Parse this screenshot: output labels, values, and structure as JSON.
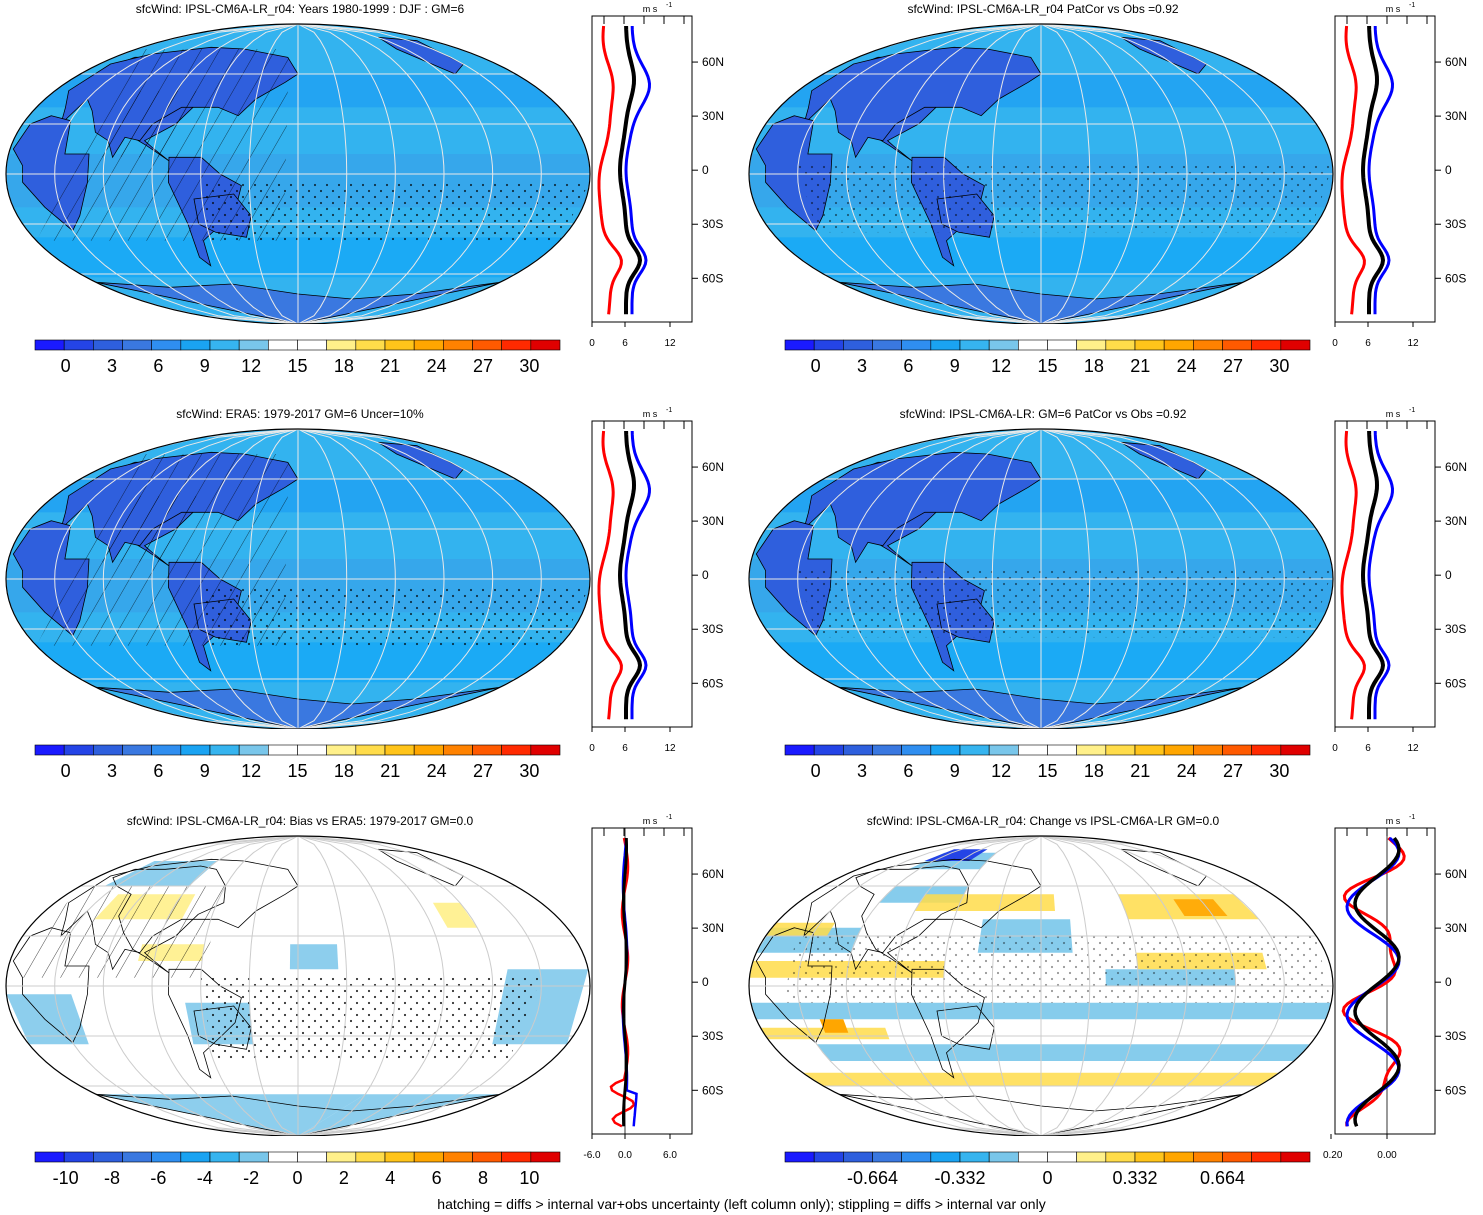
{
  "footer": "hatching = diffs > internal var+obs uncertainty (left column only); stippling = diffs > internal var only",
  "colors": {
    "scale": [
      "#1a1aff",
      "#2444e6",
      "#2e5fdd",
      "#3a78e0",
      "#2f8ef0",
      "#1aa3f2",
      "#36b4ef",
      "#79c6ea",
      "#ffffff",
      "#ffffff",
      "#fff08a",
      "#ffdc4a",
      "#ffc41a",
      "#ffa600",
      "#ff8200",
      "#ff5a00",
      "#ff2a00",
      "#e00000"
    ],
    "model_line": "#ff0000",
    "obs_line": "#0000ff",
    "mean_line": "#000000"
  },
  "panels": [
    {
      "title": "sfcWind: IPSL-CM6A-LR_r04: Years 1980-1999 : DJF : GM=6",
      "kind": "mean",
      "colorbar_labels": [
        "0",
        "3",
        "6",
        "9",
        "12",
        "15",
        "18",
        "21",
        "24",
        "27",
        "30"
      ],
      "profile": {
        "unit": "m s",
        "unit_exp": "-1",
        "lat_labels": [
          "60N",
          "30N",
          "0",
          "30S",
          "60S"
        ],
        "x_labels": [
          "0",
          "6",
          "12"
        ]
      }
    },
    {
      "title": "sfcWind: IPSL-CM6A-LR_r04 PatCor vs Obs =0.92",
      "kind": "mean",
      "colorbar_labels": [
        "0",
        "3",
        "6",
        "9",
        "12",
        "15",
        "18",
        "21",
        "24",
        "27",
        "30"
      ],
      "profile": {
        "unit": "m s",
        "unit_exp": "-1",
        "lat_labels": [
          "60N",
          "30N",
          "0",
          "30S",
          "60S"
        ],
        "x_labels": [
          "0",
          "6",
          "12"
        ]
      }
    },
    {
      "title": "sfcWind: ERA5: 1979-2017 GM=6 Uncer=10%",
      "kind": "mean",
      "colorbar_labels": [
        "0",
        "3",
        "6",
        "9",
        "12",
        "15",
        "18",
        "21",
        "24",
        "27",
        "30"
      ],
      "profile": {
        "unit": "m s",
        "unit_exp": "-1",
        "lat_labels": [
          "60N",
          "30N",
          "0",
          "30S",
          "60S"
        ],
        "x_labels": [
          "0",
          "6",
          "12"
        ]
      }
    },
    {
      "title": "sfcWind: IPSL-CM6A-LR: GM=6 PatCor vs Obs =0.92",
      "kind": "mean",
      "colorbar_labels": [
        "0",
        "3",
        "6",
        "9",
        "12",
        "15",
        "18",
        "21",
        "24",
        "27",
        "30"
      ],
      "profile": {
        "unit": "m s",
        "unit_exp": "-1",
        "lat_labels": [
          "60N",
          "30N",
          "0",
          "30S",
          "60S"
        ],
        "x_labels": [
          "0",
          "6",
          "12"
        ]
      }
    },
    {
      "title": "sfcWind: IPSL-CM6A-LR_r04: Bias vs ERA5: 1979-2017 GM=0.0",
      "kind": "bias",
      "colorbar_labels": [
        "-10",
        "-8",
        "-6",
        "-4",
        "-2",
        "0",
        "2",
        "4",
        "6",
        "8",
        "10"
      ],
      "profile": {
        "unit": "m s",
        "unit_exp": "-1",
        "lat_labels": [
          "60N",
          "30N",
          "0",
          "30S",
          "60S"
        ],
        "x_labels": [
          "-6.0",
          "0.0",
          "6.0"
        ]
      }
    },
    {
      "title": "sfcWind: IPSL-CM6A-LR_r04: Change vs IPSL-CM6A-LR GM=0.0",
      "kind": "change",
      "colorbar_labels": [
        "-0.664",
        "-0.332",
        "0",
        "0.332",
        "0.664"
      ],
      "profile": {
        "unit": "m s",
        "unit_exp": "-1",
        "lat_labels": [
          "60N",
          "30N",
          "0",
          "30S",
          "60S"
        ],
        "x_labels": [
          "-0.20",
          "0.00"
        ]
      }
    }
  ]
}
